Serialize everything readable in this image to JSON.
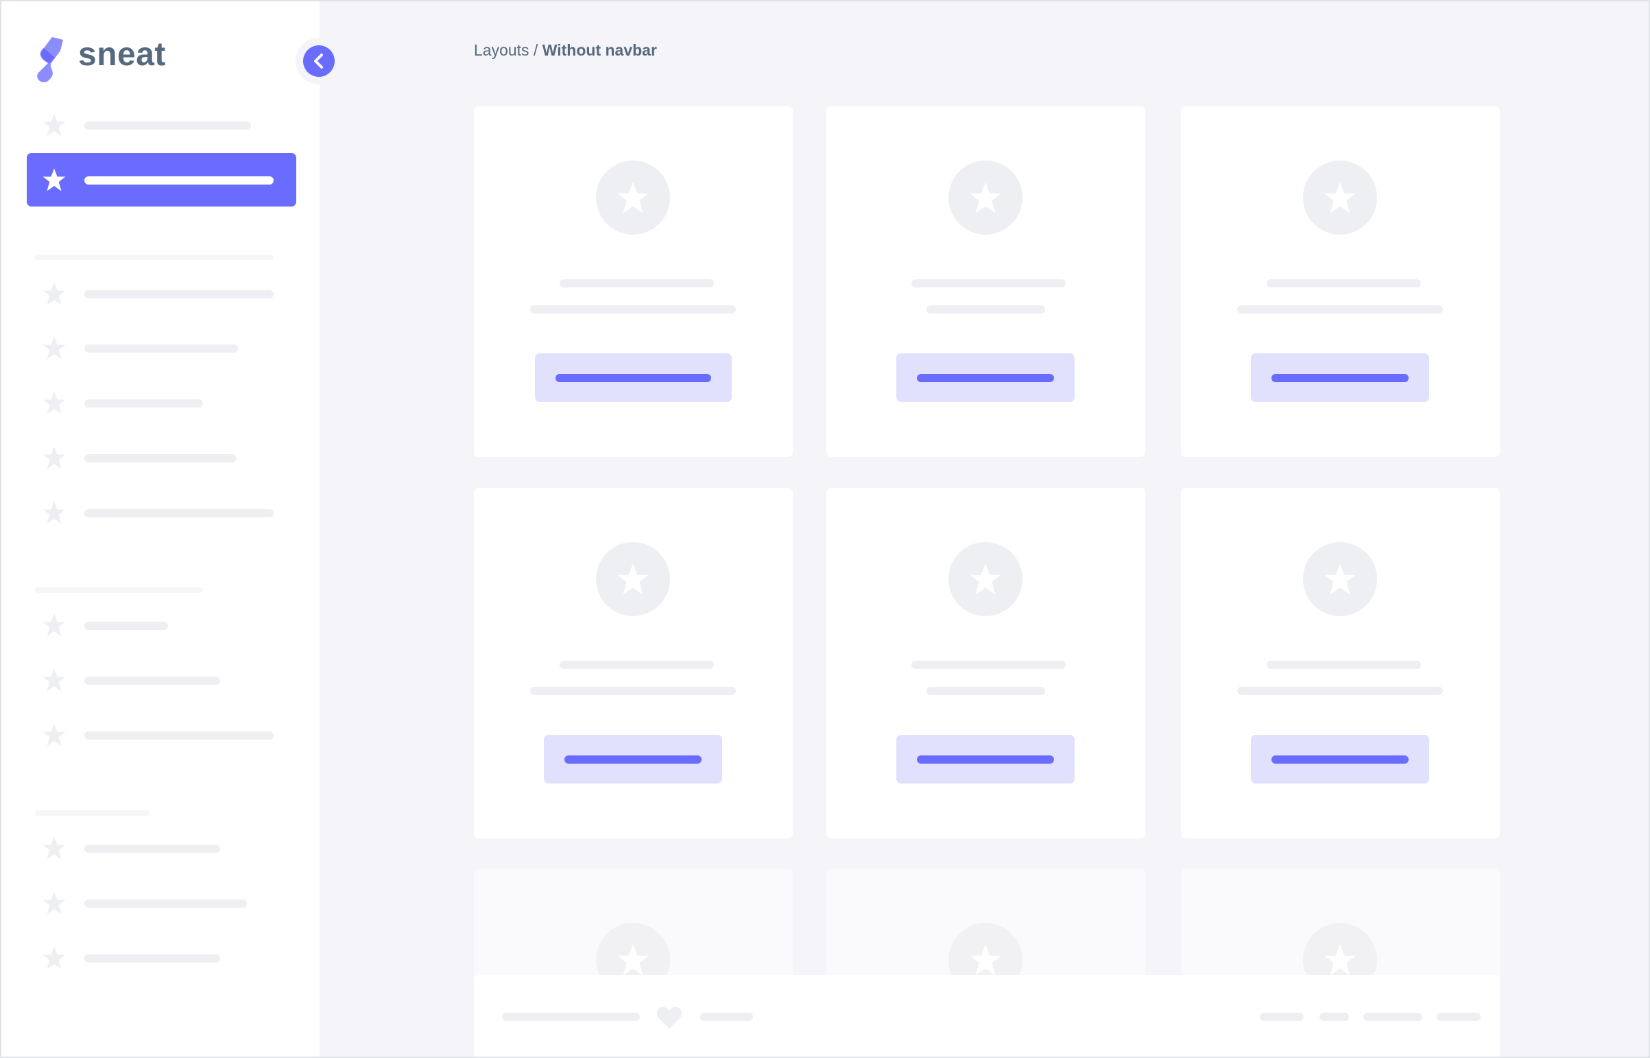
{
  "brand": {
    "name": "sneat",
    "accent": "#696cff",
    "text_color": "#566a7f"
  },
  "breadcrumb": {
    "parent": "Layouts",
    "separator": " / ",
    "current": "Without navbar"
  },
  "sidebar": {
    "toggle_icon": "chevron-left-icon",
    "item_icon": "star-icon",
    "active_index": 1
  },
  "footer": {
    "icon": "heart-icon"
  }
}
